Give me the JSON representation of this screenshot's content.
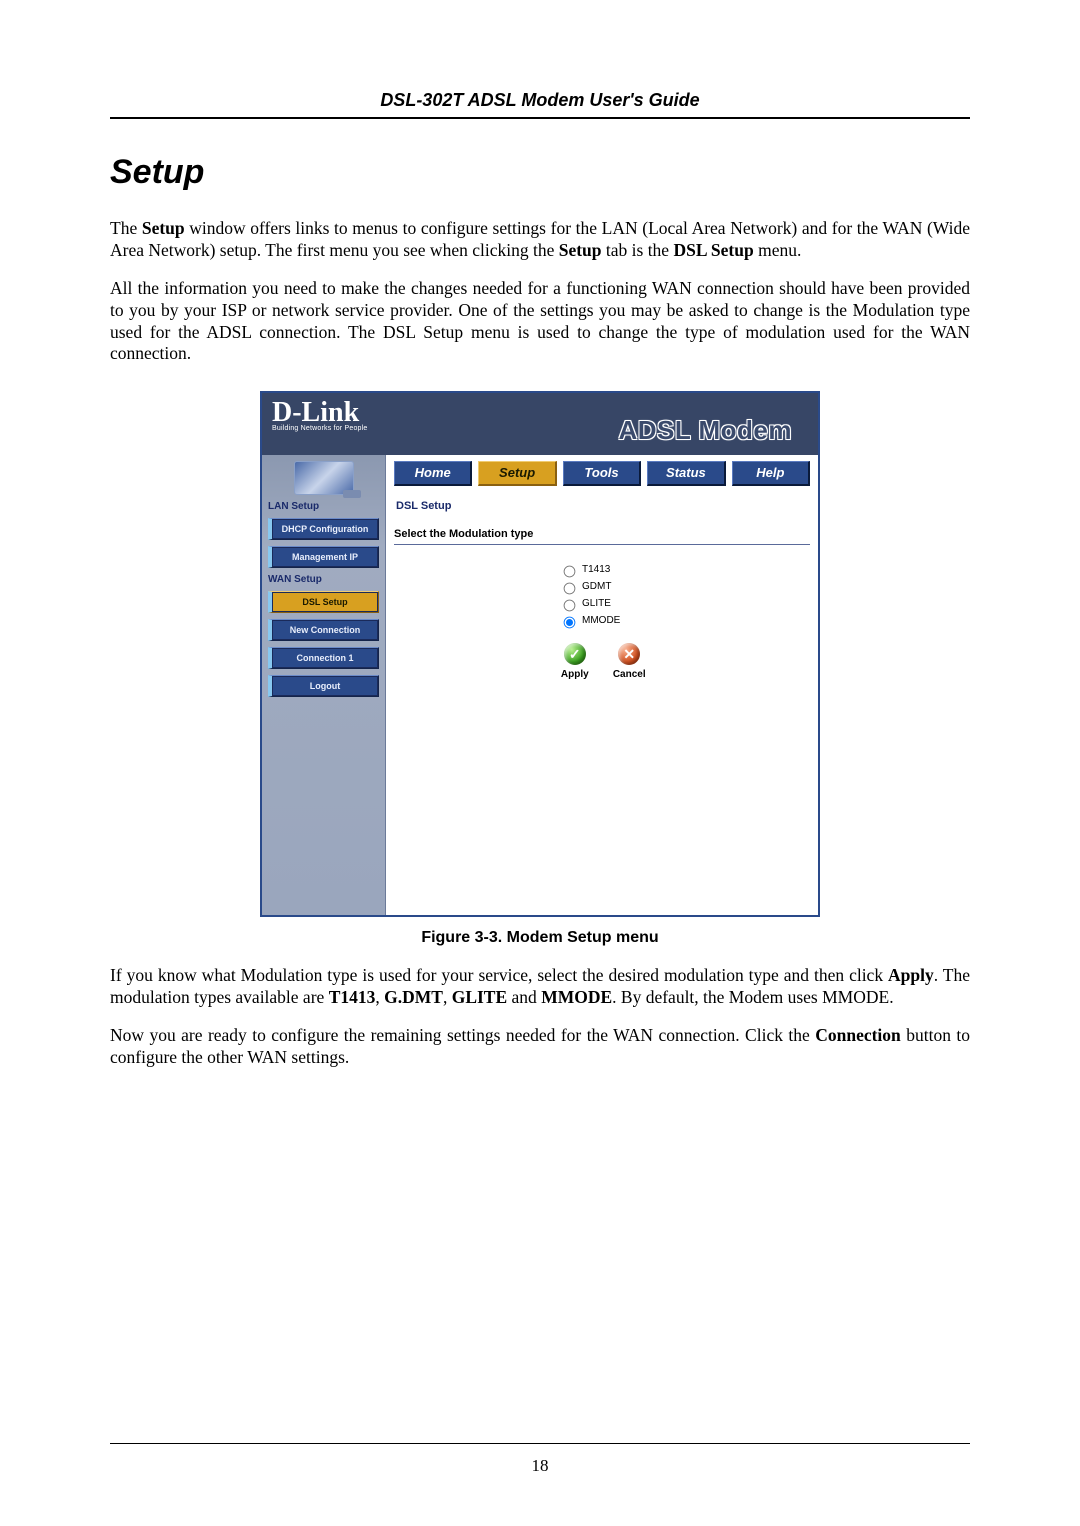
{
  "header": {
    "title": "DSL-302T ADSL Modem User's Guide"
  },
  "section_title": "Setup",
  "paragraphs": {
    "p1_a": "The ",
    "p1_b": "Setup",
    "p1_c": " window offers links to menus to configure settings for the LAN (Local Area Network) and for the WAN (Wide Area Network) setup. The first menu you see when clicking the ",
    "p1_d": "Setup",
    "p1_e": " tab is the ",
    "p1_f": "DSL Setup",
    "p1_g": " menu.",
    "p2": "All the information you need to make the changes needed for a functioning WAN connection should have been provided to you by your ISP or network service provider. One of the settings you may be asked to change is the Modulation type used for the ADSL connection. The DSL Setup menu is used to change the type of modulation used for the WAN connection.",
    "p3_a": "If you know what Modulation type is used for your service, select the desired modulation type and then click ",
    "p3_b": "Apply",
    "p3_c": ". The modulation types available are ",
    "p3_d": "T1413",
    "p3_e": ", ",
    "p3_f": "G.DMT",
    "p3_g": ", ",
    "p3_h": "GLITE",
    "p3_i": " and ",
    "p3_j": "MMODE",
    "p3_k": ". By default, the Modem uses MMODE.",
    "p4_a": "Now you are ready to configure the remaining settings needed for the WAN connection. Click the ",
    "p4_b": "Connection",
    "p4_c": " button to configure the other WAN settings."
  },
  "figure": {
    "caption": "Figure 3-3. Modem Setup menu"
  },
  "screenshot": {
    "logo": {
      "brand": "D-Link",
      "tagline": "Building Networks for People"
    },
    "banner": "ADSL Modem",
    "tabs": [
      "Home",
      "Setup",
      "Tools",
      "Status",
      "Help"
    ],
    "active_tab_index": 1,
    "sidebar": {
      "groups": [
        {
          "label": "LAN Setup",
          "items": [
            "DHCP Configuration",
            "Management IP"
          ]
        },
        {
          "label": "WAN Setup",
          "items": [
            "DSL Setup",
            "New Connection",
            "Connection 1",
            "Logout"
          ]
        }
      ],
      "active_item": "DSL Setup"
    },
    "panel": {
      "title": "DSL Setup",
      "subtitle": "Select the Modulation type",
      "options": [
        "T1413",
        "GDMT",
        "GLITE",
        "MMODE"
      ],
      "selected_index": 3,
      "actions": {
        "apply": "Apply",
        "cancel": "Cancel"
      }
    }
  },
  "page_number": "18",
  "colors": {
    "tab_bg": "#2a4a8a",
    "tab_active_bg": "#d8a020",
    "header_bg": "#374666",
    "side_bg": "#9aa6bd"
  }
}
